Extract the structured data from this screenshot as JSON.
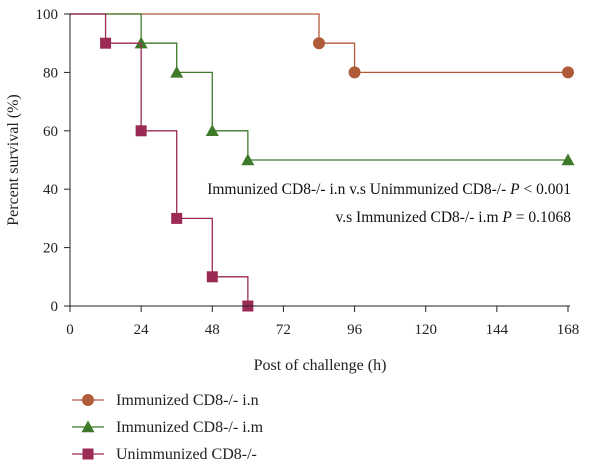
{
  "chart_data": {
    "type": "line",
    "step": true,
    "xlabel": "Post of challenge (h)",
    "ylabel": "Percent survival (%)",
    "xlim": [
      0,
      168
    ],
    "ylim": [
      0,
      100
    ],
    "x_ticks": [
      0,
      24,
      48,
      72,
      96,
      120,
      144,
      168
    ],
    "y_ticks": [
      0,
      20,
      40,
      60,
      80,
      100
    ],
    "grid": false,
    "legend_position": "bottom-left",
    "series": [
      {
        "name": "Immunized CD8-/- i.n",
        "color": "#b05a3a",
        "marker": "circle",
        "points": [
          [
            0,
            100
          ],
          [
            84,
            100
          ],
          [
            84,
            90
          ],
          [
            96,
            90
          ],
          [
            96,
            80
          ],
          [
            168,
            80
          ]
        ],
        "markers": [
          [
            84,
            90
          ],
          [
            96,
            80
          ],
          [
            168,
            80
          ]
        ]
      },
      {
        "name": "Immunized CD8-/- i.m",
        "color": "#3e7a2a",
        "marker": "triangle",
        "points": [
          [
            0,
            100
          ],
          [
            24,
            100
          ],
          [
            24,
            90
          ],
          [
            36,
            90
          ],
          [
            36,
            80
          ],
          [
            48,
            80
          ],
          [
            48,
            60
          ],
          [
            60,
            60
          ],
          [
            60,
            50
          ],
          [
            168,
            50
          ]
        ],
        "markers": [
          [
            24,
            90
          ],
          [
            36,
            80
          ],
          [
            48,
            60
          ],
          [
            60,
            50
          ],
          [
            168,
            50
          ]
        ]
      },
      {
        "name": "Unimmunized CD8-/-",
        "color": "#9b2a55",
        "marker": "square",
        "points": [
          [
            0,
            100
          ],
          [
            12,
            100
          ],
          [
            12,
            90
          ],
          [
            24,
            90
          ],
          [
            24,
            60
          ],
          [
            36,
            60
          ],
          [
            36,
            30
          ],
          [
            48,
            30
          ],
          [
            48,
            10
          ],
          [
            60,
            10
          ],
          [
            60,
            0
          ]
        ],
        "markers": [
          [
            12,
            90
          ],
          [
            24,
            60
          ],
          [
            36,
            30
          ],
          [
            48,
            10
          ],
          [
            60,
            0
          ]
        ]
      }
    ],
    "annotations": [
      {
        "parts": [
          {
            "text": "Immunized CD8-/- i.n v.s Unimmunized CD8-/- ",
            "italic": false
          },
          {
            "text": "P",
            "italic": true
          },
          {
            "text": " < 0.001",
            "italic": false
          }
        ]
      },
      {
        "parts": [
          {
            "text": "v.s Immunized CD8-/- i.m ",
            "italic": false
          },
          {
            "text": "P",
            "italic": true
          },
          {
            "text": " = 0.1068",
            "italic": false
          }
        ]
      }
    ]
  }
}
